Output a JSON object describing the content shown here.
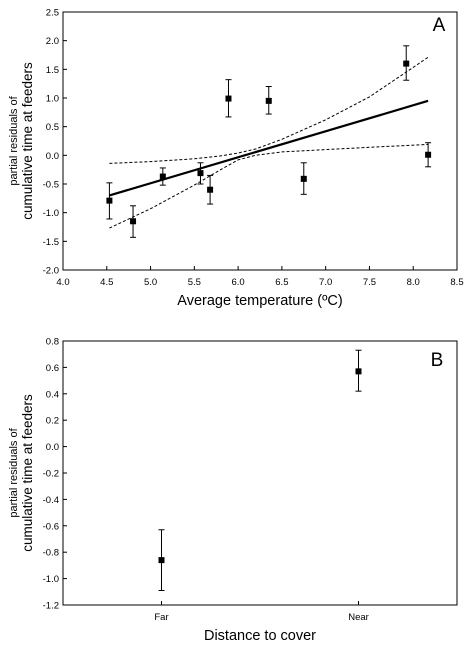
{
  "chart_data": [
    {
      "type": "scatter",
      "panel_label": "A",
      "xlabel": "Average temperature (ºC)",
      "ylabel_line1": "partial residuals of",
      "ylabel_line2": "cumulative time at feeders",
      "xlim": [
        4.0,
        8.5
      ],
      "ylim": [
        -2.0,
        2.5
      ],
      "xticks": [
        "4.0",
        "4.5",
        "5.0",
        "5.5",
        "6.0",
        "6.5",
        "7.0",
        "7.5",
        "8.0",
        "8.5"
      ],
      "yticks": [
        "-2.0",
        "-1.5",
        "-1.0",
        "-0.5",
        "0.0",
        "0.5",
        "1.0",
        "1.5",
        "2.0",
        "2.5"
      ],
      "points": [
        {
          "x": 4.53,
          "y": -0.79,
          "lo": -1.11,
          "hi": -0.48
        },
        {
          "x": 4.8,
          "y": -1.15,
          "lo": -1.43,
          "hi": -0.88
        },
        {
          "x": 5.14,
          "y": -0.37,
          "lo": -0.52,
          "hi": -0.22
        },
        {
          "x": 5.57,
          "y": -0.31,
          "lo": -0.5,
          "hi": -0.13
        },
        {
          "x": 5.68,
          "y": -0.6,
          "lo": -0.85,
          "hi": -0.35
        },
        {
          "x": 5.89,
          "y": 0.99,
          "lo": 0.67,
          "hi": 1.32
        },
        {
          "x": 6.35,
          "y": 0.95,
          "lo": 0.72,
          "hi": 1.2
        },
        {
          "x": 6.75,
          "y": -0.41,
          "lo": -0.68,
          "hi": -0.13
        },
        {
          "x": 7.92,
          "y": 1.6,
          "lo": 1.31,
          "hi": 1.91
        },
        {
          "x": 8.17,
          "y": 0.01,
          "lo": -0.2,
          "hi": 0.22
        }
      ],
      "fit_line": [
        {
          "x": 4.53,
          "y": -0.7
        },
        {
          "x": 8.17,
          "y": 0.95
        }
      ],
      "ci_upper": [
        {
          "x": 4.53,
          "y": -0.14
        },
        {
          "x": 5.0,
          "y": -0.11
        },
        {
          "x": 5.5,
          "y": -0.06
        },
        {
          "x": 5.8,
          "y": -0.01
        },
        {
          "x": 6.0,
          "y": 0.04
        },
        {
          "x": 6.2,
          "y": 0.11
        },
        {
          "x": 6.5,
          "y": 0.28
        },
        {
          "x": 7.0,
          "y": 0.62
        },
        {
          "x": 7.5,
          "y": 1.02
        },
        {
          "x": 8.17,
          "y": 1.71
        }
      ],
      "ci_lower": [
        {
          "x": 4.53,
          "y": -1.27
        },
        {
          "x": 5.0,
          "y": -0.93
        },
        {
          "x": 5.5,
          "y": -0.52
        },
        {
          "x": 5.8,
          "y": -0.25
        },
        {
          "x": 6.0,
          "y": -0.08
        },
        {
          "x": 6.2,
          "y": 0.0
        },
        {
          "x": 6.5,
          "y": 0.06
        },
        {
          "x": 7.0,
          "y": 0.1
        },
        {
          "x": 7.5,
          "y": 0.14
        },
        {
          "x": 8.17,
          "y": 0.19
        }
      ]
    },
    {
      "type": "scatter",
      "panel_label": "B",
      "xlabel": "Distance to cover",
      "ylabel_line1": "partial residuals of",
      "ylabel_line2": "cumulative time at feeders",
      "categories": [
        "Far",
        "Near"
      ],
      "ylim": [
        -1.2,
        0.8
      ],
      "yticks": [
        "-1.2",
        "-1.0",
        "-0.8",
        "-0.6",
        "-0.4",
        "-0.2",
        "0.0",
        "0.2",
        "0.4",
        "0.6",
        "0.8"
      ],
      "points": [
        {
          "category": "Far",
          "y": -0.86,
          "lo": -1.09,
          "hi": -0.63
        },
        {
          "category": "Near",
          "y": 0.57,
          "lo": 0.42,
          "hi": 0.73
        }
      ]
    }
  ]
}
